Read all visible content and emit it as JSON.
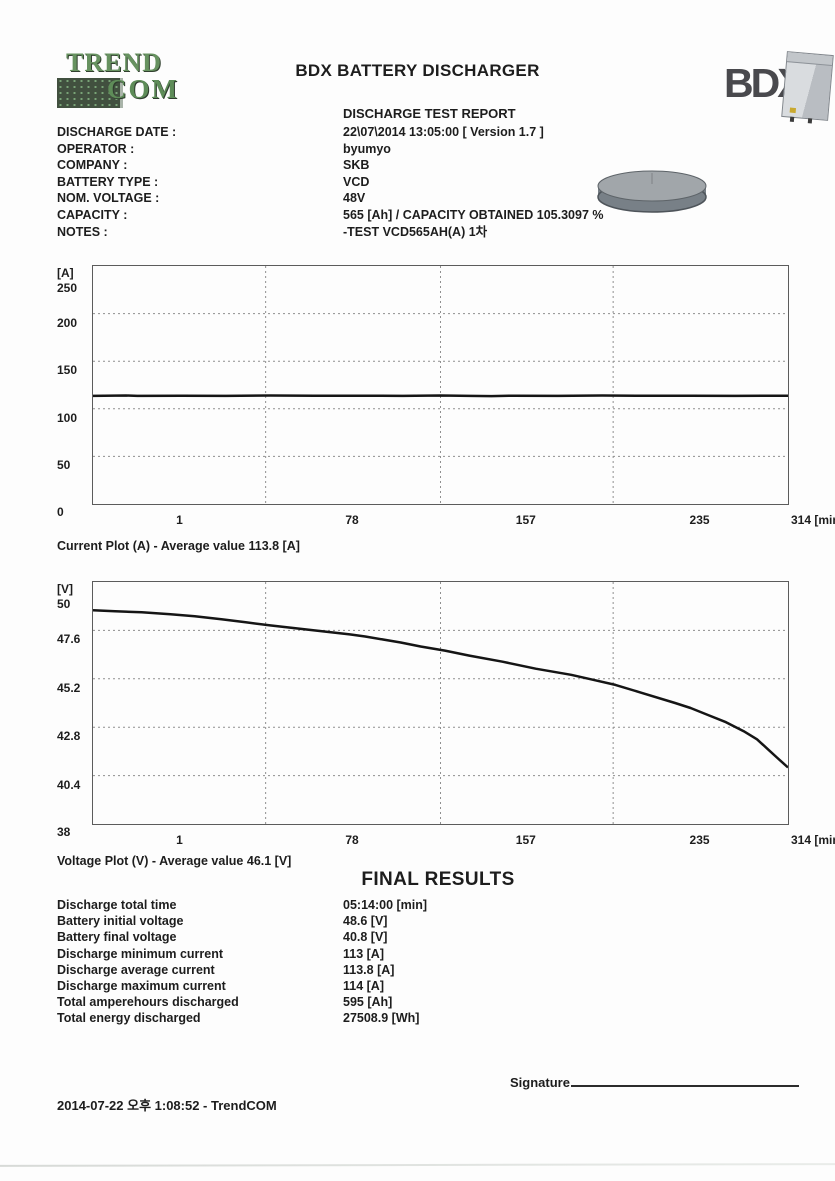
{
  "header": {
    "title": "BDX BATTERY DISCHARGER",
    "subtitle": "DISCHARGE TEST REPORT",
    "trendcom_logo": {
      "line1": "TREND",
      "line2": "COM"
    },
    "bdx_logo_text": "BDX"
  },
  "metadata": {
    "rows": [
      {
        "label": "DISCHARGE DATE :",
        "value": "22\\07\\2014 13:05:00 [ Version 1.7 ]"
      },
      {
        "label": "OPERATOR :",
        "value": "byumyo"
      },
      {
        "label": "COMPANY :",
        "value": "SKB"
      },
      {
        "label": "BATTERY TYPE :",
        "value": "VCD"
      },
      {
        "label": "NOM. VOLTAGE :",
        "value": "48V"
      },
      {
        "label": "CAPACITY :",
        "value": "565 [Ah] / CAPACITY OBTAINED 105.3097 %"
      },
      {
        "label": "NOTES :",
        "value": "-TEST VCD565AH(A) 1차"
      }
    ]
  },
  "final_results": {
    "heading": "FINAL RESULTS",
    "rows": [
      {
        "label": "Discharge total time",
        "value": "05:14:00 [min]"
      },
      {
        "label": "Battery initial voltage",
        "value": "48.6 [V]"
      },
      {
        "label": "Battery final voltage",
        "value": "40.8 [V]"
      },
      {
        "label": "Discharge minimum current",
        "value": "113 [A]"
      },
      {
        "label": "Discharge average current",
        "value": "113.8 [A]"
      },
      {
        "label": "Discharge maximum current",
        "value": "114 [A]"
      },
      {
        "label": "Total amperehours discharged",
        "value": "595 [Ah]"
      },
      {
        "label": "Total energy discharged",
        "value": "27508.9 [Wh]"
      }
    ]
  },
  "footer": {
    "signature_label": "Signature",
    "timestamp": "2014-07-22 오후 1:08:52 - TrendCOM"
  },
  "colors": {
    "line": "#151515",
    "grid": "#8f8f8f",
    "logo_green": "#5e8c58",
    "logo_gray": "#49494d"
  },
  "chart_data": [
    {
      "type": "line",
      "title": "Current Plot (A) - Average value 113.8 [A]",
      "ylabel": "[A]",
      "xlabel": "[min]",
      "ylim": [
        0,
        250
      ],
      "xlim": [
        0,
        314
      ],
      "yticks": [
        250,
        200,
        150,
        100,
        50,
        0
      ],
      "xticks": [
        1,
        78,
        157,
        235,
        314
      ],
      "grid": true,
      "legend": "none",
      "average_value": 113.8,
      "series": [
        {
          "name": "discharge-current",
          "x": [
            0,
            15,
            20,
            40,
            60,
            80,
            100,
            120,
            140,
            157,
            170,
            180,
            190,
            210,
            230,
            250,
            270,
            290,
            314
          ],
          "y": [
            113.5,
            114,
            113.5,
            113.8,
            113.6,
            114,
            113.7,
            113.8,
            113.5,
            114,
            113.6,
            113.3,
            113.8,
            113.6,
            114,
            113.7,
            113.8,
            113.6,
            113.8
          ]
        }
      ]
    },
    {
      "type": "line",
      "title": "Voltage Plot (V) - Average value 46.1 [V]",
      "ylabel": "[V]",
      "xlabel": "[min]",
      "ylim": [
        38,
        50
      ],
      "xlim": [
        0,
        314
      ],
      "yticks": [
        50,
        47.6,
        45.2,
        42.8,
        40.4,
        38
      ],
      "xticks": [
        1,
        78,
        157,
        235,
        314
      ],
      "grid": true,
      "legend": "none",
      "average_value": 46.1,
      "series": [
        {
          "name": "battery-voltage",
          "x": [
            0,
            10,
            22,
            35,
            46,
            58,
            69,
            80,
            92,
            100,
            108,
            116,
            123,
            131,
            139,
            148,
            159,
            170,
            185,
            200,
            216,
            226,
            236,
            248,
            263,
            270,
            278,
            286,
            294,
            300,
            305,
            309,
            314
          ],
          "y": [
            48.6,
            48.55,
            48.5,
            48.4,
            48.3,
            48.15,
            48.0,
            47.85,
            47.7,
            47.6,
            47.5,
            47.4,
            47.3,
            47.15,
            47.0,
            46.8,
            46.6,
            46.35,
            46.05,
            45.7,
            45.4,
            45.15,
            44.9,
            44.5,
            44.0,
            43.75,
            43.4,
            43.05,
            42.6,
            42.2,
            41.7,
            41.3,
            40.8
          ]
        }
      ]
    }
  ]
}
